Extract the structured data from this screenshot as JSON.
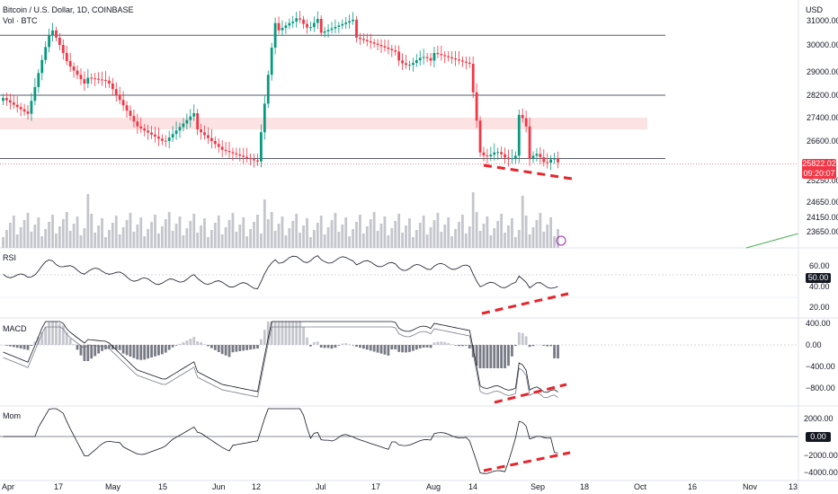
{
  "header": {
    "symbol_line": "Bitcoin / U.S. Dollar, 1D, COINBASE",
    "volume_label": "Vol · BTC",
    "currency": "USD"
  },
  "price_badge": {
    "price": "25822.02",
    "countdown": "09:20:07"
  },
  "panes": {
    "rsi": {
      "label": "RSI",
      "ticks": [
        "60.00",
        "40.00",
        "20.00"
      ],
      "badge": "50.00"
    },
    "macd": {
      "label": "MACD",
      "ticks": [
        "400.00",
        "0.00",
        "−400.00",
        "−800.00"
      ]
    },
    "mom": {
      "label": "Mom",
      "ticks": [
        "2000.00",
        "−2000.00",
        "−4000.00"
      ],
      "badge": "0.00"
    }
  },
  "colors": {
    "up": "#089981",
    "down": "#f23645",
    "zone": "#fde2e4",
    "divergence": "#e8242b",
    "trend": "#4caf50"
  },
  "chart_data": {
    "type": "candlestick",
    "symbol": "Bitcoin / U.S. Dollar",
    "interval": "1D",
    "exchange": "COINBASE",
    "price_axis_ticks": [
      "31000.00",
      "30000.00",
      "29000.00",
      "28200.00",
      "27400.00",
      "26600.00",
      "25250.00",
      "24650.00",
      "24150.00",
      "23650.00"
    ],
    "time_axis_ticks": [
      "Apr",
      "17",
      "May",
      "15",
      "Jun",
      "12",
      "Jul",
      "17",
      "Aug",
      "14",
      "Sep",
      "18",
      "Oct",
      "16",
      "Nov",
      "13"
    ],
    "horizontal_levels": [
      30400,
      28200,
      26000
    ],
    "resistance_zone": [
      27000,
      27400
    ],
    "divergence_lines_drawn": [
      "price",
      "rsi",
      "macd",
      "momentum"
    ],
    "last_price": 25822.02,
    "series": [
      {
        "name": "Vol · BTC",
        "values": []
      },
      {
        "name": "RSI",
        "values": []
      },
      {
        "name": "MACD",
        "values": []
      },
      {
        "name": "Mom",
        "values": []
      }
    ]
  }
}
